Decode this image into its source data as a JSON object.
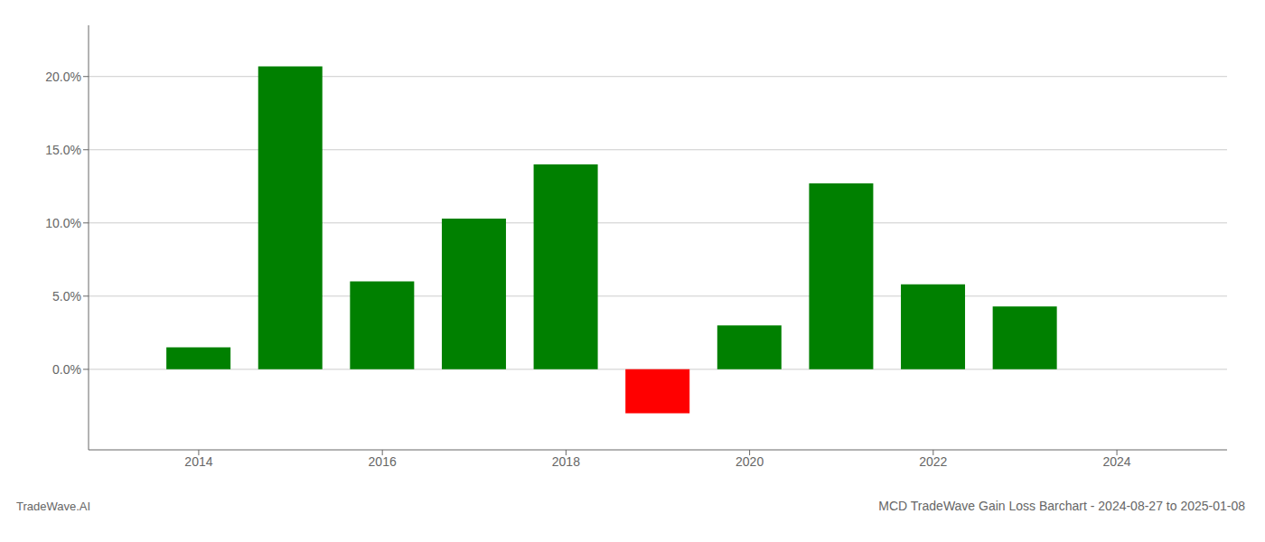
{
  "chart_data": {
    "type": "bar",
    "title": "MCD TradeWave Gain Loss Barchart - 2024-08-27 to 2025-01-08",
    "annotations": [
      "TradeWave.AI"
    ],
    "x": [
      2014,
      2015,
      2016,
      2017,
      2018,
      2019,
      2020,
      2021,
      2022,
      2023
    ],
    "values": [
      0.015,
      0.207,
      0.06,
      0.103,
      0.14,
      -0.03,
      0.03,
      0.127,
      0.058,
      0.043
    ],
    "colors": [
      "#008000",
      "#008000",
      "#008000",
      "#008000",
      "#008000",
      "#ff0000",
      "#008000",
      "#008000",
      "#008000",
      "#008000"
    ],
    "xlim": [
      2012.8,
      2025.2
    ],
    "xticks": [
      2014,
      2016,
      2018,
      2020,
      2022,
      2024
    ],
    "ylim": [
      -0.055,
      0.235
    ],
    "yticks": [
      {
        "value": 0.0,
        "label": "0.0%"
      },
      {
        "value": 0.05,
        "label": "5.0%"
      },
      {
        "value": 0.1,
        "label": "10.0%"
      },
      {
        "value": 0.15,
        "label": "15.0%"
      },
      {
        "value": 0.2,
        "label": "20.0%"
      }
    ],
    "grid": true
  }
}
